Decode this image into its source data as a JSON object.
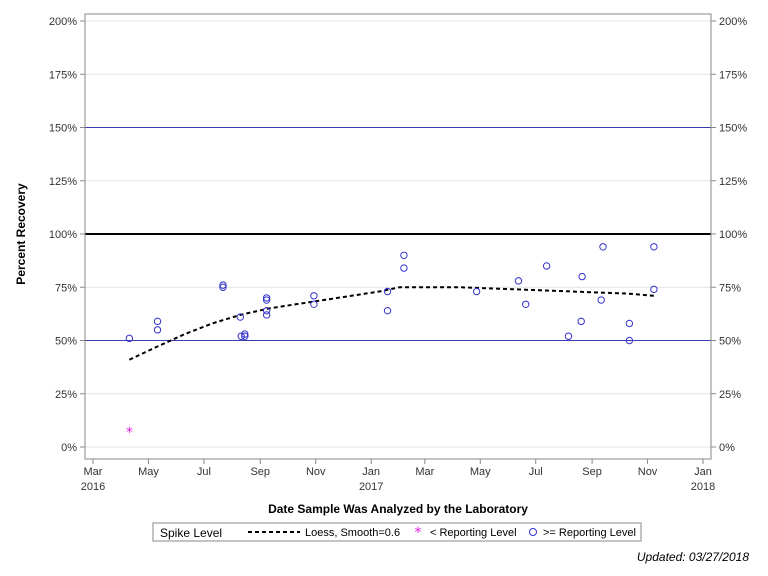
{
  "chart_data": {
    "type": "scatter",
    "xlabel": "Date Sample Was Analyzed by the Laboratory",
    "ylabel": "Percent Recovery",
    "ylim": [
      0,
      200
    ],
    "xlim": [
      "2016-03-01",
      "2018-01-01"
    ],
    "y_ticks": [
      {
        "value": 0,
        "label": "0%"
      },
      {
        "value": 25,
        "label": "25%"
      },
      {
        "value": 50,
        "label": "50%"
      },
      {
        "value": 75,
        "label": "75%"
      },
      {
        "value": 100,
        "label": "100%"
      },
      {
        "value": 125,
        "label": "125%"
      },
      {
        "value": 150,
        "label": "150%"
      },
      {
        "value": 175,
        "label": "175%"
      },
      {
        "value": 200,
        "label": "200%"
      }
    ],
    "x_ticks": [
      {
        "date": "2016-03-01",
        "label": "Mar",
        "year": "2016"
      },
      {
        "date": "2016-05-01",
        "label": "May",
        "year": ""
      },
      {
        "date": "2016-07-01",
        "label": "Jul",
        "year": ""
      },
      {
        "date": "2016-09-01",
        "label": "Sep",
        "year": ""
      },
      {
        "date": "2016-11-01",
        "label": "Nov",
        "year": ""
      },
      {
        "date": "2017-01-01",
        "label": "Jan",
        "year": "2017"
      },
      {
        "date": "2017-03-01",
        "label": "Mar",
        "year": ""
      },
      {
        "date": "2017-05-01",
        "label": "May",
        "year": ""
      },
      {
        "date": "2017-07-01",
        "label": "Jul",
        "year": ""
      },
      {
        "date": "2017-09-01",
        "label": "Sep",
        "year": ""
      },
      {
        "date": "2017-11-01",
        "label": "Nov",
        "year": ""
      },
      {
        "date": "2018-01-01",
        "label": "Jan",
        "year": "2018"
      }
    ],
    "reference_lines": [
      {
        "y": 150,
        "style": "thin",
        "color": "#3b3bb0"
      },
      {
        "y": 100,
        "style": "thick",
        "color": "#000000"
      },
      {
        "y": 50,
        "style": "thin",
        "color": "#3b3bb0"
      }
    ],
    "grid": true,
    "legend_position": "bottom",
    "series": [
      {
        "name": ">= Reporting Level",
        "marker": "circle",
        "color": "#3333cc",
        "points": [
          {
            "x": "2016-04-10",
            "y": 51
          },
          {
            "x": "2016-05-11",
            "y": 59
          },
          {
            "x": "2016-05-11",
            "y": 55
          },
          {
            "x": "2016-07-22",
            "y": 76
          },
          {
            "x": "2016-07-22",
            "y": 75
          },
          {
            "x": "2016-08-10",
            "y": 61
          },
          {
            "x": "2016-08-11",
            "y": 52
          },
          {
            "x": "2016-08-15",
            "y": 53
          },
          {
            "x": "2016-08-15",
            "y": 52
          },
          {
            "x": "2016-09-08",
            "y": 70
          },
          {
            "x": "2016-09-08",
            "y": 69
          },
          {
            "x": "2016-09-08",
            "y": 64
          },
          {
            "x": "2016-09-08",
            "y": 62
          },
          {
            "x": "2016-10-30",
            "y": 71
          },
          {
            "x": "2016-10-30",
            "y": 67
          },
          {
            "x": "2017-01-19",
            "y": 73
          },
          {
            "x": "2017-01-19",
            "y": 64
          },
          {
            "x": "2017-02-06",
            "y": 90
          },
          {
            "x": "2017-02-06",
            "y": 84
          },
          {
            "x": "2017-04-27",
            "y": 73
          },
          {
            "x": "2017-06-12",
            "y": 78
          },
          {
            "x": "2017-06-20",
            "y": 67
          },
          {
            "x": "2017-07-13",
            "y": 85
          },
          {
            "x": "2017-08-06",
            "y": 52
          },
          {
            "x": "2017-08-20",
            "y": 59
          },
          {
            "x": "2017-08-21",
            "y": 80
          },
          {
            "x": "2017-09-11",
            "y": 69
          },
          {
            "x": "2017-09-13",
            "y": 94
          },
          {
            "x": "2017-10-12",
            "y": 58
          },
          {
            "x": "2017-10-12",
            "y": 50
          },
          {
            "x": "2017-11-08",
            "y": 94
          },
          {
            "x": "2017-11-08",
            "y": 74
          }
        ]
      },
      {
        "name": "< Reporting Level",
        "marker": "asterisk",
        "color": "#e020e0",
        "points": [
          {
            "x": "2016-04-10",
            "y": 7
          }
        ]
      },
      {
        "name": "Loess, Smooth=0.6",
        "marker": "dashed-line",
        "color": "#000000",
        "points": [
          {
            "x": "2016-04-10",
            "y": 41
          },
          {
            "x": "2016-05-10",
            "y": 47
          },
          {
            "x": "2016-06-10",
            "y": 53
          },
          {
            "x": "2016-07-10",
            "y": 58
          },
          {
            "x": "2016-08-10",
            "y": 62
          },
          {
            "x": "2016-09-10",
            "y": 65
          },
          {
            "x": "2016-10-10",
            "y": 67
          },
          {
            "x": "2016-11-10",
            "y": 69
          },
          {
            "x": "2016-12-10",
            "y": 71
          },
          {
            "x": "2017-01-10",
            "y": 73
          },
          {
            "x": "2017-02-01",
            "y": 75
          },
          {
            "x": "2017-03-10",
            "y": 75
          },
          {
            "x": "2017-04-10",
            "y": 75
          },
          {
            "x": "2017-05-10",
            "y": 74.5
          },
          {
            "x": "2017-06-10",
            "y": 74
          },
          {
            "x": "2017-07-10",
            "y": 73.5
          },
          {
            "x": "2017-08-10",
            "y": 73
          },
          {
            "x": "2017-09-10",
            "y": 72.5
          },
          {
            "x": "2017-10-10",
            "y": 72
          },
          {
            "x": "2017-11-08",
            "y": 71
          }
        ]
      }
    ],
    "legend": {
      "title": "Spike Level",
      "entries": [
        {
          "label": "Loess, Smooth=0.6",
          "symbol": "dashed-line",
          "color": "#000000"
        },
        {
          "label": "< Reporting Level",
          "symbol": "asterisk",
          "color": "#e020e0"
        },
        {
          "label": ">= Reporting Level",
          "symbol": "circle",
          "color": "#3333cc"
        }
      ]
    }
  },
  "footnote": "Updated: 03/27/2018"
}
